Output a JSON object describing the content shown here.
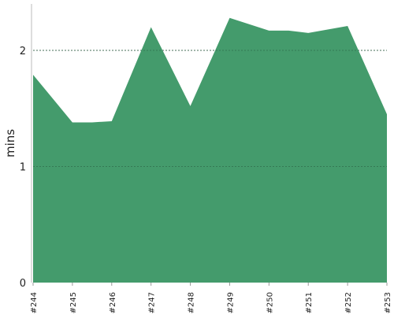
{
  "chart_data": {
    "type": "area",
    "x": [
      "#244",
      "#245",
      "#246",
      "#247",
      "#248",
      "#249",
      "#250",
      "#251",
      "#252",
      "#253"
    ],
    "series": [
      {
        "points": [
          {
            "x": "#244",
            "y": 1.79
          },
          {
            "x": "#245",
            "y": 1.38
          },
          {
            "x": "#245.5",
            "y": 1.38
          },
          {
            "x": "#246",
            "y": 1.39
          },
          {
            "x": "#247",
            "y": 2.2
          },
          {
            "x": "#248",
            "y": 1.52
          },
          {
            "x": "#249",
            "y": 2.28
          },
          {
            "x": "#250",
            "y": 2.17
          },
          {
            "x": "#250.5",
            "y": 2.17
          },
          {
            "x": "#251",
            "y": 2.15
          },
          {
            "x": "#252",
            "y": 2.21
          },
          {
            "x": "#253",
            "y": 1.45
          }
        ],
        "color": "#449b6c"
      }
    ],
    "title": "",
    "xlabel": "",
    "ylabel": "mins",
    "ylim": [
      0,
      2.4
    ],
    "yticks": [
      "0",
      "1",
      "2"
    ],
    "gridlines": [
      1,
      2
    ],
    "grid": "horizontal-dashed",
    "legend": "none"
  }
}
